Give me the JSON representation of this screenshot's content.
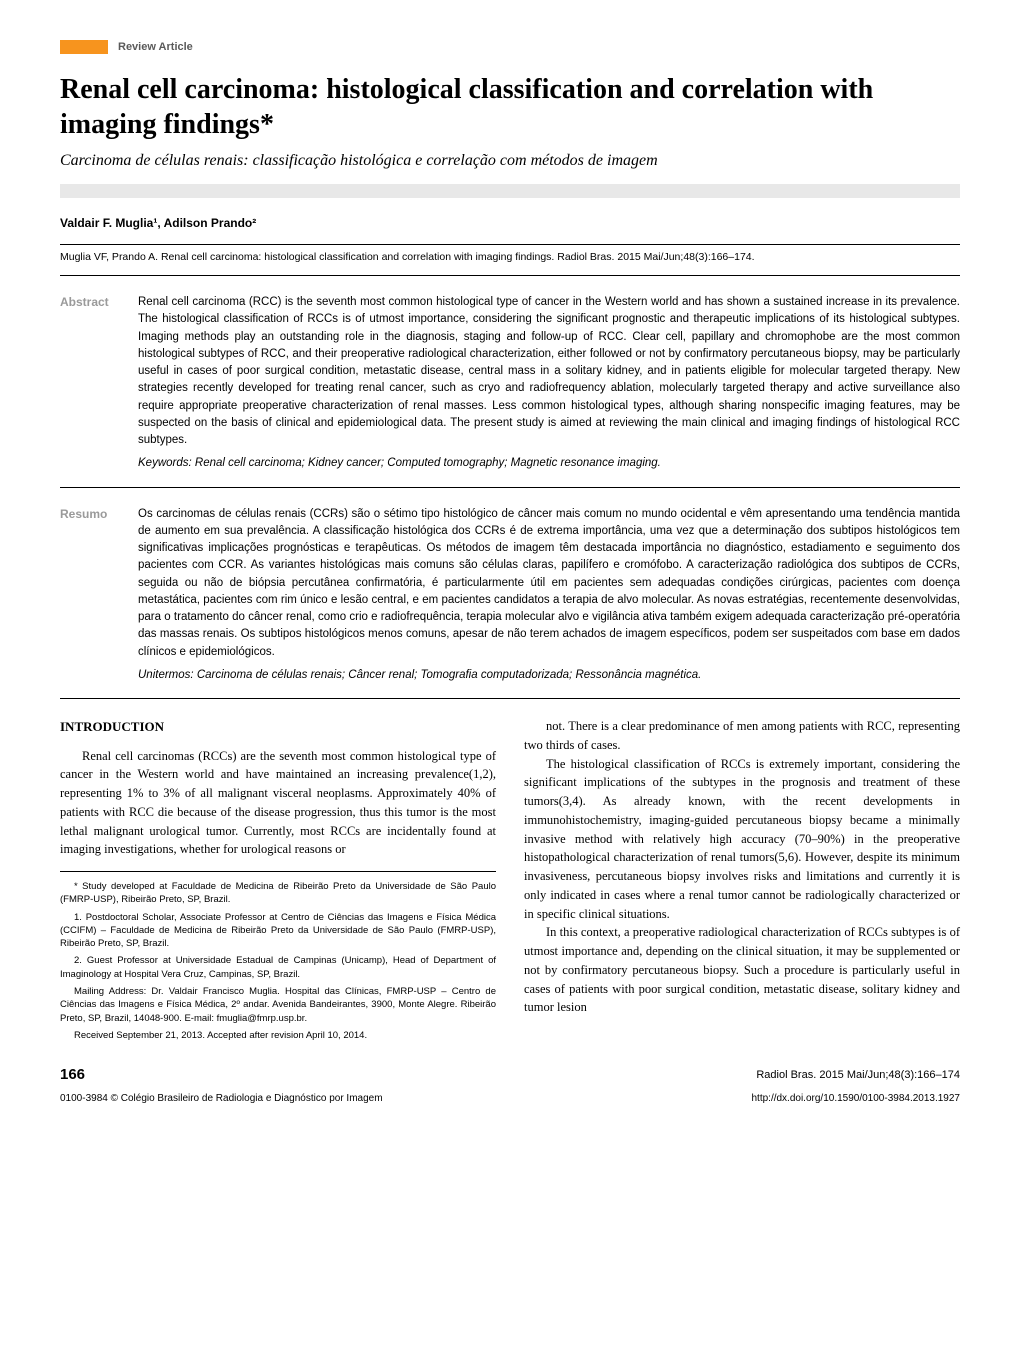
{
  "header": {
    "section_label": "Review Article"
  },
  "title": "Renal cell carcinoma: histological classification and correlation with imaging findings*",
  "subtitle": "Carcinoma de células renais: classificação histológica e correlação com métodos de imagem",
  "authors": "Valdair F. Muglia¹, Adilson Prando²",
  "citation": "Muglia VF, Prando A. Renal cell carcinoma: histological classification and correlation with imaging findings. Radiol Bras. 2015 Mai/Jun;48(3):166–174.",
  "abstract": {
    "label": "Abstract",
    "text": "Renal cell carcinoma (RCC) is the seventh most common histological type of cancer in the Western world and has shown a sustained increase in its prevalence. The histological classification of RCCs is of utmost importance, considering the significant prognostic and therapeutic implications of its histological subtypes. Imaging methods play an outstanding role in the diagnosis, staging and follow-up of RCC. Clear cell, papillary and chromophobe are the most common histological subtypes of RCC, and their preoperative radiological characterization, either followed or not by confirmatory percutaneous biopsy, may be particularly useful in cases of poor surgical condition, metastatic disease, central mass in a solitary kidney, and in patients eligible for molecular targeted therapy. New strategies recently developed for treating renal cancer, such as cryo and radiofrequency ablation, molecularly targeted therapy and active surveillance also require appropriate preoperative characterization of renal masses. Less common histological types, although sharing nonspecific imaging features, may be suspected on the basis of clinical and epidemiological data. The present study is aimed at reviewing the main clinical and imaging findings of histological RCC subtypes.",
    "keywords_label": "Keywords:",
    "keywords": "Renal cell carcinoma; Kidney cancer; Computed tomography; Magnetic resonance imaging."
  },
  "resumo": {
    "label": "Resumo",
    "text": "Os carcinomas de células renais (CCRs) são o sétimo tipo histológico de câncer mais comum no mundo ocidental e vêm apresentando uma tendência mantida de aumento em sua prevalência. A classificação histológica dos CCRs é de extrema importância, uma vez que a determinação dos subtipos histológicos tem significativas implicações prognósticas e terapêuticas. Os métodos de imagem têm destacada importância no diagnóstico, estadiamento e seguimento dos pacientes com CCR. As variantes histológicas mais comuns são células claras, papilífero e cromófobo. A caracterização radiológica dos subtipos de CCRs, seguida ou não de biópsia percutânea confirmatória, é particularmente útil em pacientes sem adequadas condições cirúrgicas, pacientes com doença metastática, pacientes com rim único e lesão central, e em pacientes candidatos a terapia de alvo molecular. As novas estratégias, recentemente desenvolvidas, para o tratamento do câncer renal, como crio e radiofrequência, terapia molecular alvo e vigilância ativa também exigem adequada caracterização pré-operatória das massas renais. Os subtipos histológicos menos comuns, apesar de não terem achados de imagem específicos, podem ser suspeitados com base em dados clínicos e epidemiológicos.",
    "keywords_label": "Unitermos:",
    "keywords": "Carcinoma de células renais; Câncer renal; Tomografia computadorizada; Ressonância magnética."
  },
  "intro_heading": "INTRODUCTION",
  "body": {
    "left": {
      "p1": "Renal cell carcinomas (RCCs) are the seventh most common histological type of cancer in the Western world and have maintained an increasing prevalence(1,2), representing 1% to 3% of all malignant visceral neoplasms. Approximately 40% of patients with RCC die because of the disease progression, thus this tumor is the most lethal malignant urological tumor. Currently, most RCCs are incidentally found at imaging investigations, whether for urological reasons or"
    },
    "right": {
      "p1": "not. There is a clear predominance of men among patients with RCC, representing two thirds of cases.",
      "p2": "The histological classification of RCCs is extremely important, considering the significant implications of the subtypes in the prognosis and treatment of these tumors(3,4). As already known, with the recent developments in immunohistochemistry, imaging-guided percutaneous biopsy became a minimally invasive method with relatively high accuracy (70–90%) in the preoperative histopathological characterization of renal tumors(5,6). However, despite its minimum invasiveness, percutaneous biopsy involves risks and limitations and currently it is only indicated in cases where a renal tumor cannot be radiologically characterized or in specific clinical situations.",
      "p3": "In this context, a preoperative radiological characterization of RCCs subtypes is of utmost importance and, depending on the clinical situation, it may be supplemented or not by confirmatory percutaneous biopsy. Such a procedure is particularly useful in cases of patients with poor surgical condition, metastatic disease, solitary kidney and tumor lesion"
    }
  },
  "footnotes": {
    "f1": "* Study developed at Faculdade de Medicina de Ribeirão Preto da Universidade de São Paulo (FMRP-USP), Ribeirão Preto, SP, Brazil.",
    "f2": "1. Postdoctoral Scholar, Associate Professor at Centro de Ciências das Imagens e Física Médica (CCIFM) – Faculdade de Medicina de Ribeirão Preto da Universidade de São Paulo (FMRP-USP), Ribeirão Preto, SP, Brazil.",
    "f3": "2. Guest Professor at Universidade Estadual de Campinas (Unicamp), Head of Department of Imaginology at Hospital Vera Cruz, Campinas, SP, Brazil.",
    "f4": "Mailing Address: Dr. Valdair Francisco Muglia. Hospital das Clínicas, FMRP-USP – Centro de Ciências das Imagens e Física Médica, 2º andar. Avenida Bandeirantes, 3900, Monte Alegre. Ribeirão Preto, SP, Brazil, 14048-900. E-mail: fmuglia@fmrp.usp.br.",
    "f5": "Received September 21, 2013. Accepted after revision April 10, 2014."
  },
  "footer": {
    "page_number": "166",
    "journal_ref": "Radiol Bras. 2015 Mai/Jun;48(3):166–174",
    "copyright": "0100-3984 © Colégio Brasileiro de Radiologia e Diagnóstico por Imagem",
    "doi": "http://dx.doi.org/10.1590/0100-3984.2013.1927"
  },
  "colors": {
    "orange": "#f7941e",
    "band_gray": "#e8e8e8",
    "label_gray": "#9a9a9a"
  }
}
